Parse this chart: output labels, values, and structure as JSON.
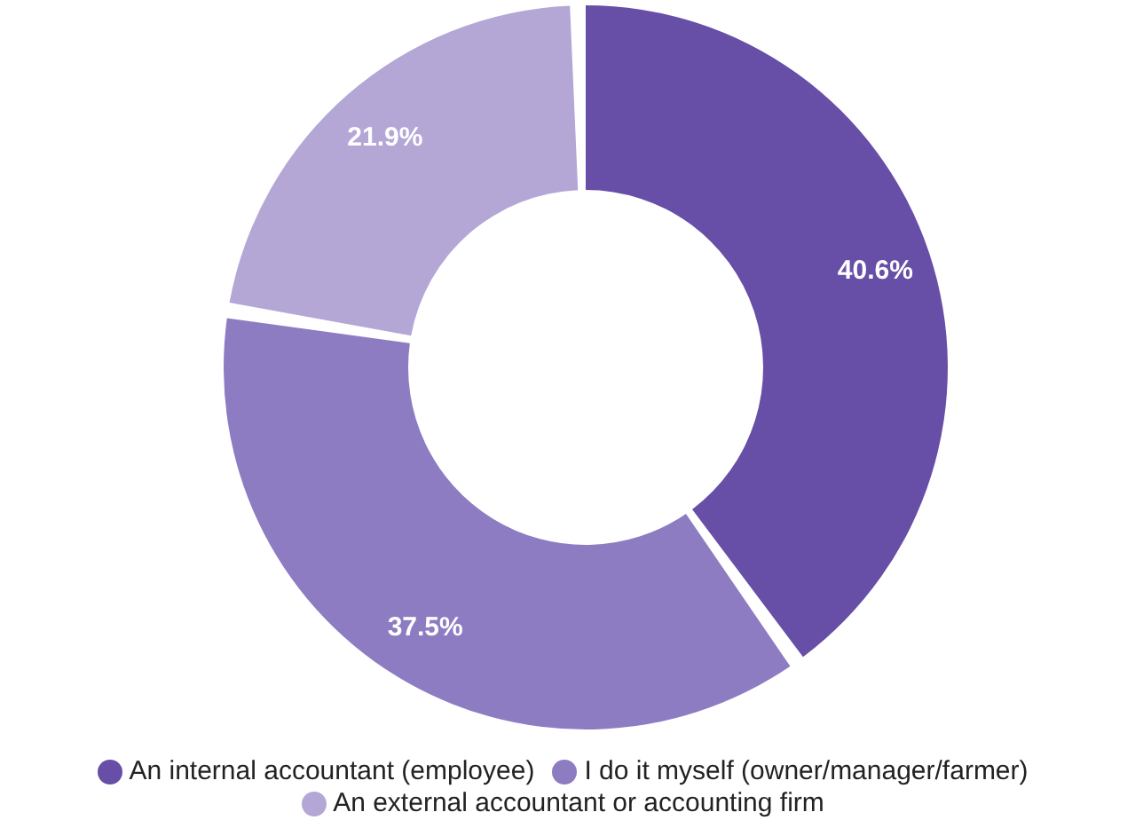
{
  "chart_data": {
    "type": "donut",
    "categories": [
      "An internal accountant (employee)",
      "I do it myself (owner/manager/farmer)",
      "An external accountant or accounting firm"
    ],
    "values": [
      40.6,
      37.5,
      21.9
    ],
    "colors": [
      "#674ea7",
      "#8e7cc3",
      "#b4a7d6"
    ],
    "value_labels": [
      "40.6%",
      "37.5%",
      "21.9%"
    ],
    "legend": "bottom"
  }
}
